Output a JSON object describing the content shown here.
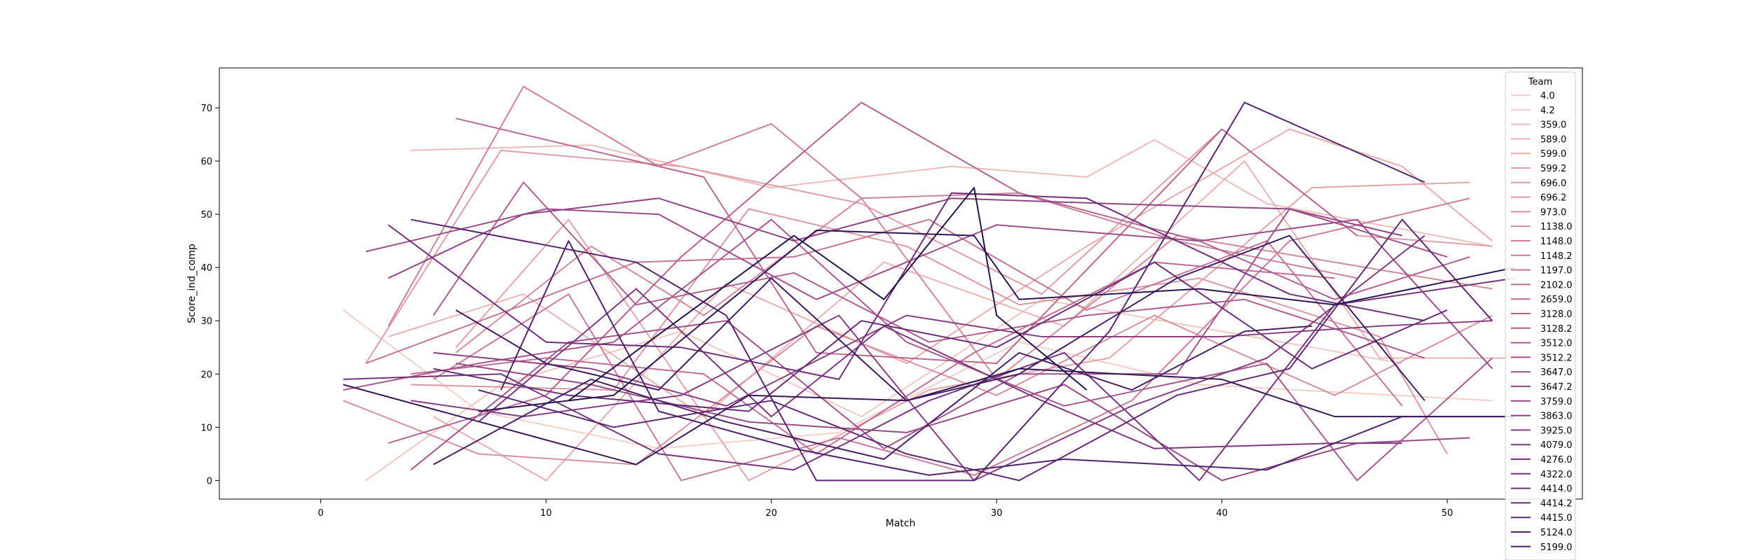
{
  "chart_data": {
    "type": "line",
    "xlabel": "Match",
    "ylabel": "Score_ind_comp",
    "xlim": [
      -4.5,
      56
    ],
    "ylim": [
      -3.5,
      77.5
    ],
    "xticks": [
      0,
      10,
      20,
      30,
      40,
      50
    ],
    "yticks": [
      0,
      10,
      20,
      30,
      40,
      50,
      60,
      70
    ],
    "legend_title": "Team",
    "legend_position": "upper-right",
    "series": [
      {
        "name": "4.0",
        "color": "#f3d0c9",
        "points": [
          [
            1,
            32
          ],
          [
            7,
            13
          ],
          [
            15,
            6
          ],
          [
            23,
            9
          ],
          [
            31,
            26
          ],
          [
            39,
            18
          ],
          [
            52,
            15
          ]
        ]
      },
      {
        "name": "4.2",
        "color": "#f0c8c1",
        "points": [
          [
            2,
            0
          ],
          [
            8,
            18
          ],
          [
            16,
            28
          ],
          [
            24,
            12
          ],
          [
            32,
            34
          ],
          [
            40,
            28
          ],
          [
            48,
            22
          ]
        ]
      },
      {
        "name": "359.0",
        "color": "#ebbcb9",
        "points": [
          [
            4,
            62
          ],
          [
            12,
            63
          ],
          [
            20,
            55
          ],
          [
            28,
            59
          ],
          [
            34,
            57
          ],
          [
            37,
            64
          ],
          [
            42,
            52
          ],
          [
            52,
            44
          ]
        ]
      },
      {
        "name": "589.0",
        "color": "#e8b4b3",
        "points": [
          [
            3,
            27
          ],
          [
            9,
            35
          ],
          [
            17,
            12
          ],
          [
            25,
            41
          ],
          [
            33,
            29
          ],
          [
            41,
            60
          ],
          [
            47,
            23
          ],
          [
            53,
            23
          ]
        ]
      },
      {
        "name": "599.0",
        "color": "#e5adae",
        "points": [
          [
            5,
            12
          ],
          [
            10,
            0
          ],
          [
            18,
            37
          ],
          [
            26,
            22
          ],
          [
            34,
            44
          ],
          [
            43,
            66
          ],
          [
            48,
            59
          ],
          [
            52,
            45
          ]
        ]
      },
      {
        "name": "599.2",
        "color": "#e1a5a9",
        "points": [
          [
            6,
            25
          ],
          [
            11,
            49
          ],
          [
            19,
            0
          ],
          [
            27,
            17
          ],
          [
            35,
            23
          ],
          [
            44,
            55
          ],
          [
            51,
            56
          ]
        ]
      },
      {
        "name": "696.0",
        "color": "#dd9ea6",
        "points": [
          [
            2,
            22
          ],
          [
            8,
            62
          ],
          [
            16,
            59
          ],
          [
            24,
            52
          ],
          [
            32,
            35
          ],
          [
            40,
            66
          ],
          [
            46,
            46
          ],
          [
            52,
            44
          ]
        ]
      },
      {
        "name": "696.2",
        "color": "#d997a3",
        "points": [
          [
            4,
            18
          ],
          [
            13,
            17
          ],
          [
            19,
            51
          ],
          [
            26,
            44
          ],
          [
            31,
            33
          ],
          [
            39,
            38
          ],
          [
            47,
            27
          ],
          [
            50,
            5
          ]
        ]
      },
      {
        "name": "973.0",
        "color": "#d590a0",
        "points": [
          [
            1,
            15
          ],
          [
            7,
            5
          ],
          [
            14,
            3
          ],
          [
            22,
            29
          ],
          [
            30,
            16
          ],
          [
            37,
            31
          ],
          [
            45,
            16
          ],
          [
            52,
            31
          ]
        ]
      },
      {
        "name": "1138.0",
        "color": "#d1899e",
        "points": [
          [
            6,
            24
          ],
          [
            12,
            44
          ],
          [
            17,
            31
          ],
          [
            24,
            53
          ],
          [
            30,
            19
          ],
          [
            38,
            46
          ],
          [
            45,
            41
          ],
          [
            52,
            36
          ]
        ]
      },
      {
        "name": "1148.0",
        "color": "#cc829b",
        "points": [
          [
            3,
            29
          ],
          [
            9,
            74
          ],
          [
            15,
            59
          ],
          [
            20,
            67
          ],
          [
            24,
            53
          ],
          [
            31,
            54
          ],
          [
            38,
            45
          ],
          [
            46,
            38
          ]
        ]
      },
      {
        "name": "1148.2",
        "color": "#c87b99",
        "points": [
          [
            5,
            19
          ],
          [
            11,
            35
          ],
          [
            16,
            0
          ],
          [
            23,
            8
          ],
          [
            29,
            1
          ],
          [
            36,
            15
          ],
          [
            43,
            45
          ],
          [
            51,
            53
          ]
        ]
      },
      {
        "name": "1197.0",
        "color": "#c37497",
        "points": [
          [
            2,
            22
          ],
          [
            9,
            33
          ],
          [
            14,
            41
          ],
          [
            21,
            42
          ],
          [
            27,
            49
          ],
          [
            34,
            32
          ],
          [
            42,
            45
          ],
          [
            48,
            14
          ]
        ]
      },
      {
        "name": "2102.0",
        "color": "#be6e95",
        "points": [
          [
            4,
            20
          ],
          [
            10,
            23
          ],
          [
            17,
            20
          ],
          [
            22,
            5
          ],
          [
            29,
            24
          ],
          [
            37,
            41
          ],
          [
            45,
            38
          ]
        ]
      },
      {
        "name": "2659.0",
        "color": "#b96893",
        "points": [
          [
            6,
            68
          ],
          [
            11,
            63
          ],
          [
            17,
            57
          ],
          [
            22,
            24
          ],
          [
            30,
            22
          ],
          [
            40,
            66
          ],
          [
            46,
            46
          ]
        ]
      },
      {
        "name": "3128.0",
        "color": "#b46291",
        "points": [
          [
            3,
            7
          ],
          [
            10,
            16
          ],
          [
            16,
            42
          ],
          [
            24,
            71
          ],
          [
            31,
            54
          ],
          [
            39,
            45
          ],
          [
            45,
            34
          ],
          [
            51,
            42
          ]
        ]
      },
      {
        "name": "3128.2",
        "color": "#ae5d8f",
        "points": [
          [
            5,
            31
          ],
          [
            9,
            56
          ],
          [
            14,
            33
          ],
          [
            21,
            39
          ],
          [
            27,
            26
          ],
          [
            34,
            31
          ],
          [
            41,
            34
          ],
          [
            49,
            23
          ]
        ]
      },
      {
        "name": "3512.0",
        "color": "#a8588d",
        "points": [
          [
            1,
            17
          ],
          [
            7,
            22
          ],
          [
            13,
            26
          ],
          [
            20,
            49
          ],
          [
            26,
            26
          ],
          [
            33,
            14
          ],
          [
            42,
            22
          ],
          [
            46,
            0
          ],
          [
            52,
            23
          ]
        ]
      },
      {
        "name": "3512.2",
        "color": "#a2538b",
        "points": [
          [
            4,
            2
          ],
          [
            11,
            26
          ],
          [
            18,
            30
          ],
          [
            25,
            6
          ],
          [
            31,
            20
          ],
          [
            38,
            20
          ],
          [
            43,
            51
          ],
          [
            50,
            42
          ]
        ]
      },
      {
        "name": "3647.0",
        "color": "#9c4e89",
        "points": [
          [
            2,
            43
          ],
          [
            10,
            51
          ],
          [
            15,
            50
          ],
          [
            22,
            34
          ],
          [
            30,
            48
          ],
          [
            39,
            45
          ],
          [
            46,
            49
          ],
          [
            52,
            21
          ]
        ]
      },
      {
        "name": "3647.2",
        "color": "#964a87",
        "points": [
          [
            6,
            22
          ],
          [
            12,
            18
          ],
          [
            19,
            11
          ],
          [
            26,
            9
          ],
          [
            33,
            18
          ],
          [
            40,
            0
          ],
          [
            46,
            7
          ],
          [
            51,
            8
          ]
        ]
      },
      {
        "name": "3759.0",
        "color": "#904585",
        "points": [
          [
            3,
            38
          ],
          [
            9,
            50
          ],
          [
            15,
            53
          ],
          [
            21,
            45
          ],
          [
            28,
            53
          ],
          [
            35,
            52
          ],
          [
            43,
            51
          ],
          [
            48,
            46
          ]
        ]
      },
      {
        "name": "3863.0",
        "color": "#894183",
        "points": [
          [
            5,
            24
          ],
          [
            12,
            21
          ],
          [
            18,
            14
          ],
          [
            26,
            31
          ],
          [
            32,
            27
          ],
          [
            40,
            27
          ],
          [
            47,
            29
          ],
          [
            52,
            30
          ]
        ]
      },
      {
        "name": "3925.0",
        "color": "#833d80",
        "points": [
          [
            4,
            15
          ],
          [
            9,
            12
          ],
          [
            16,
            16
          ],
          [
            23,
            31
          ],
          [
            29,
            0
          ],
          [
            36,
            14
          ],
          [
            42,
            23
          ],
          [
            49,
            46
          ]
        ]
      },
      {
        "name": "4079.0",
        "color": "#7c397e",
        "points": [
          [
            7,
            11
          ],
          [
            14,
            36
          ],
          [
            20,
            12
          ],
          [
            25,
            29
          ],
          [
            32,
            15
          ],
          [
            37,
            6
          ],
          [
            45,
            7
          ],
          [
            48,
            7
          ]
        ]
      },
      {
        "name": "4276.0",
        "color": "#75357b",
        "points": [
          [
            1,
            19
          ],
          [
            8,
            20
          ],
          [
            15,
            5
          ],
          [
            21,
            2
          ],
          [
            27,
            15
          ],
          [
            33,
            24
          ],
          [
            39,
            0
          ],
          [
            45,
            33
          ],
          [
            53,
            38
          ]
        ]
      },
      {
        "name": "4322.0",
        "color": "#6e3178",
        "points": [
          [
            3,
            48
          ],
          [
            10,
            26
          ],
          [
            16,
            25
          ],
          [
            23,
            19
          ],
          [
            28,
            54
          ],
          [
            34,
            53
          ],
          [
            43,
            35
          ],
          [
            49,
            30
          ]
        ]
      },
      {
        "name": "4414.0",
        "color": "#662d75",
        "points": [
          [
            5,
            21
          ],
          [
            11,
            16
          ],
          [
            19,
            13
          ],
          [
            24,
            30
          ],
          [
            30,
            25
          ],
          [
            37,
            41
          ],
          [
            44,
            21
          ],
          [
            50,
            32
          ]
        ]
      },
      {
        "name": "4414.2",
        "color": "#5f2a71",
        "points": [
          [
            7,
            17
          ],
          [
            13,
            10
          ],
          [
            20,
            15
          ],
          [
            26,
            5
          ],
          [
            31,
            0
          ],
          [
            38,
            16
          ],
          [
            43,
            21
          ],
          [
            48,
            49
          ],
          [
            52,
            30
          ]
        ]
      },
      {
        "name": "4415.0",
        "color": "#58276d",
        "points": [
          [
            4,
            49
          ],
          [
            14,
            41
          ],
          [
            18,
            31
          ],
          [
            22,
            0
          ],
          [
            29,
            0
          ],
          [
            35,
            28
          ],
          [
            41,
            71
          ],
          [
            49,
            56
          ]
        ]
      },
      {
        "name": "5124.0",
        "color": "#502369",
        "points": [
          [
            8,
            17
          ],
          [
            11,
            45
          ],
          [
            15,
            13
          ],
          [
            21,
            6
          ],
          [
            27,
            1
          ],
          [
            33,
            4
          ],
          [
            42,
            2
          ],
          [
            48,
            12
          ],
          [
            53,
            12
          ]
        ]
      },
      {
        "name": "5199.0",
        "color": "#482064",
        "points": [
          [
            5,
            3
          ],
          [
            12,
            19
          ],
          [
            18,
            11
          ],
          [
            25,
            4
          ],
          [
            31,
            24
          ],
          [
            36,
            17
          ],
          [
            41,
            28
          ],
          [
            44,
            29
          ]
        ]
      },
      {
        "name": "",
        "color": "#3f1c5e",
        "points": [
          [
            6,
            32
          ],
          [
            10,
            22
          ],
          [
            15,
            17
          ],
          [
            20,
            38
          ],
          [
            26,
            15
          ],
          [
            31,
            20
          ],
          [
            38,
            38
          ],
          [
            43,
            46
          ],
          [
            49,
            15
          ]
        ]
      },
      {
        "name": "",
        "color": "#371957",
        "points": [
          [
            1,
            18
          ],
          [
            14,
            3
          ],
          [
            19,
            16
          ],
          [
            26,
            15
          ],
          [
            31,
            21
          ],
          [
            40,
            19
          ],
          [
            45,
            12
          ],
          [
            53,
            12
          ]
        ]
      },
      {
        "name": "",
        "color": "#2e1650",
        "points": [
          [
            7,
            13
          ],
          [
            13,
            16
          ],
          [
            22,
            47
          ],
          [
            29,
            46
          ],
          [
            31,
            34
          ],
          [
            39,
            36
          ],
          [
            45,
            33
          ],
          [
            53,
            40
          ]
        ]
      },
      {
        "name": "",
        "color": "#261347",
        "points": [
          [
            11,
            15
          ],
          [
            21,
            46
          ],
          [
            25,
            34
          ],
          [
            29,
            55
          ],
          [
            30,
            31
          ],
          [
            34,
            17
          ]
        ]
      }
    ]
  }
}
